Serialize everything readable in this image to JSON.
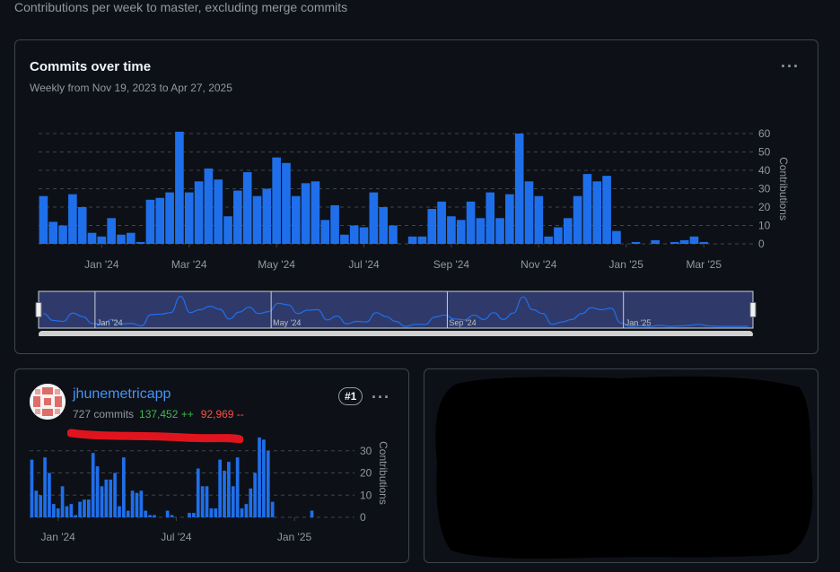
{
  "page": {
    "description": "Contributions per week to master, excluding merge commits"
  },
  "main_chart": {
    "title": "Commits over time",
    "subtitle": "Weekly from Nov 19, 2023 to Apr 27, 2025",
    "menu_icon": "kebab-horizontal-icon"
  },
  "user": {
    "name": "jhunemetricapp",
    "commits": "727 commits",
    "additions": "137,452 ++",
    "deletions": "92,969 --",
    "rank": "#1",
    "menu_icon": "kebab-horizontal-icon",
    "avatar_icon": "identicon-avatar"
  },
  "colors": {
    "bar": "#1f6feb",
    "grid": "#3d444d",
    "text_muted": "#9198a1",
    "additions": "#3fb950",
    "deletions": "#f85149",
    "navigator_bg": "#2f3a6b",
    "annotation_red": "#e0141e"
  },
  "chart_data": [
    {
      "type": "bar",
      "title": "",
      "ylabel": "Contributions",
      "ylim": [
        0,
        60
      ],
      "yticks": [
        0,
        10,
        20,
        30,
        40,
        50,
        60
      ],
      "xticks": [
        "Jan '24",
        "Mar '24",
        "May '24",
        "Jul '24",
        "Sep '24",
        "Nov '24",
        "Jan '25",
        "Mar '25"
      ],
      "xtick_week_index": [
        6,
        15,
        24,
        33,
        42,
        51,
        60,
        68
      ],
      "values": [
        26,
        12,
        10,
        27,
        20,
        6,
        4,
        14,
        5,
        6,
        1,
        24,
        25,
        28,
        61,
        28,
        34,
        41,
        35,
        15,
        29,
        39,
        26,
        30,
        47,
        44,
        26,
        33,
        34,
        13,
        21,
        5,
        10,
        9,
        28,
        20,
        10,
        0,
        4,
        4,
        19,
        23,
        15,
        13,
        23,
        14,
        28,
        14,
        27,
        60,
        34,
        26,
        4,
        9,
        14,
        26,
        38,
        34,
        37,
        7,
        0,
        1,
        0,
        2,
        0,
        1,
        2,
        4,
        1,
        0,
        0,
        0,
        0
      ],
      "navigator": {
        "labels": [
          "Jan '24",
          "May '24",
          "Sep '24",
          "Jan '25"
        ]
      }
    },
    {
      "type": "bar",
      "title": "",
      "ylabel": "Contributions",
      "ylim": [
        0,
        40
      ],
      "yticks": [
        0,
        10,
        20,
        30
      ],
      "xticks": [
        "Jan '24",
        "Jul '24",
        "Jan '25"
      ],
      "xtick_week_index": [
        6,
        33,
        60
      ],
      "values": [
        26,
        12,
        10,
        27,
        20,
        6,
        4,
        14,
        5,
        6,
        1,
        7,
        8,
        8,
        29,
        23,
        14,
        17,
        17,
        20,
        5,
        27,
        3,
        12,
        11,
        12,
        3,
        1,
        1,
        0,
        0,
        3,
        1,
        0,
        0,
        0,
        2,
        2,
        22,
        14,
        14,
        4,
        4,
        26,
        21,
        25,
        14,
        27,
        4,
        6,
        13,
        20,
        36,
        35,
        30,
        7,
        0,
        0,
        0,
        0,
        0,
        0,
        0,
        0,
        3,
        0,
        0,
        0,
        0,
        0,
        0,
        0,
        0
      ]
    }
  ]
}
